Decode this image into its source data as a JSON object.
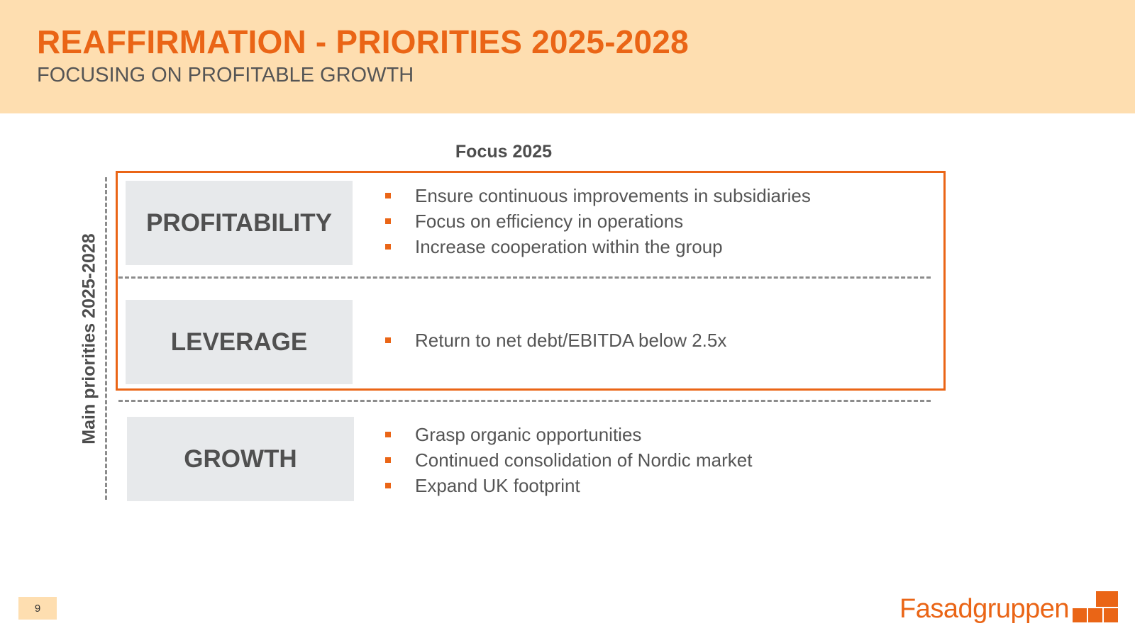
{
  "header": {
    "title": "REAFFIRMATION - PRIORITIES 2025-2028",
    "subtitle": "FOCUSING ON PROFITABLE GROWTH"
  },
  "focus_label": "Focus 2025",
  "side_label": "Main priorities 2025-2028",
  "priorities": [
    {
      "name": "PROFITABILITY",
      "bullets": [
        "Ensure continuous improvements in subsidiaries",
        "Focus on efficiency in operations",
        "Increase cooperation within the group"
      ]
    },
    {
      "name": "LEVERAGE",
      "bullets": [
        "Return to net debt/EBITDA below 2.5x"
      ]
    },
    {
      "name": "GROWTH",
      "bullets": [
        "Grasp organic opportunities",
        "Continued consolidation of Nordic market",
        "Expand UK footprint"
      ]
    }
  ],
  "footer": {
    "page_number": "9",
    "logo_text": "Fasadgruppen"
  },
  "colors": {
    "accent": "#ea6516",
    "header_bg": "#fedeb0",
    "box_bg": "#e7e9eb",
    "text": "#555555"
  }
}
